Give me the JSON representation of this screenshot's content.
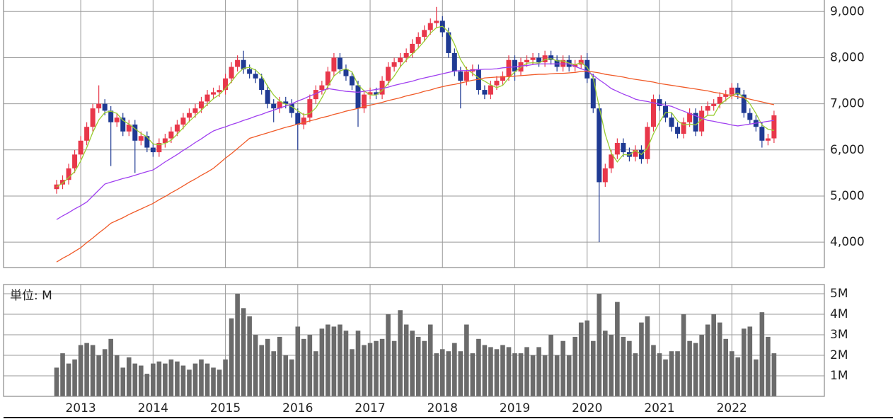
{
  "chart_data": {
    "type": "candlestick",
    "categories": [
      null,
      null,
      null,
      null,
      "2013",
      null,
      null,
      null,
      null,
      null,
      null,
      null,
      null,
      null,
      null,
      null,
      "2014",
      null,
      null,
      null,
      null,
      null,
      null,
      null,
      null,
      null,
      null,
      null,
      "2015",
      null,
      null,
      null,
      null,
      null,
      null,
      null,
      null,
      null,
      null,
      null,
      "2016",
      null,
      null,
      null,
      null,
      null,
      null,
      null,
      null,
      null,
      null,
      null,
      "2017",
      null,
      null,
      null,
      null,
      null,
      null,
      null,
      null,
      null,
      null,
      null,
      "2018",
      null,
      null,
      null,
      null,
      null,
      null,
      null,
      null,
      null,
      null,
      null,
      "2019",
      null,
      null,
      null,
      null,
      null,
      null,
      null,
      null,
      null,
      null,
      null,
      "2020",
      null,
      null,
      null,
      null,
      null,
      null,
      null,
      null,
      null,
      null,
      null,
      "2021",
      null,
      null,
      null,
      null,
      null,
      null,
      null,
      null,
      null,
      null,
      null,
      "2022",
      null,
      null,
      null,
      null,
      null,
      null,
      null
    ],
    "open": [
      5150,
      5250,
      5350,
      5600,
      5900,
      6200,
      6500,
      6900,
      7000,
      6850,
      6600,
      6700,
      6400,
      6550,
      6200,
      6300,
      6050,
      5950,
      6150,
      6250,
      6400,
      6550,
      6700,
      6800,
      6900,
      7050,
      7200,
      7250,
      7300,
      7550,
      7800,
      7950,
      7750,
      7650,
      7550,
      7300,
      7000,
      6900,
      7050,
      7000,
      6800,
      6550,
      6700,
      7100,
      7300,
      7400,
      7700,
      8000,
      7750,
      7600,
      7400,
      6900,
      7200,
      7250,
      7200,
      7500,
      7800,
      7900,
      8000,
      8100,
      8300,
      8450,
      8600,
      8750,
      8800,
      8550,
      8100,
      7700,
      7500,
      7700,
      7750,
      7300,
      7200,
      7400,
      7500,
      7600,
      7950,
      7700,
      7900,
      7950,
      8000,
      7900,
      8050,
      7950,
      7800,
      7950,
      7800,
      7850,
      7950,
      7550,
      6900,
      5300,
      5600,
      5900,
      6150,
      5950,
      5850,
      6000,
      5800,
      6500,
      7100,
      6950,
      6700,
      6500,
      6350,
      6600,
      6800,
      6400,
      6850,
      6950,
      7000,
      7150,
      7200,
      7350,
      7200,
      6800,
      6650,
      6500,
      6200,
      6250
    ],
    "high": [
      5350,
      5450,
      5700,
      6000,
      6300,
      6600,
      7000,
      7400,
      7100,
      6950,
      6800,
      6800,
      6650,
      6650,
      6400,
      6400,
      6150,
      6250,
      6350,
      6500,
      6650,
      6800,
      6900,
      7000,
      7150,
      7300,
      7350,
      7400,
      7650,
      7900,
      8050,
      8150,
      7850,
      7750,
      7650,
      7400,
      7100,
      7150,
      7150,
      7100,
      6900,
      6800,
      7200,
      7400,
      7500,
      7800,
      8100,
      8100,
      7850,
      7700,
      7500,
      7300,
      7350,
      7350,
      7600,
      7900,
      8000,
      8100,
      8200,
      8400,
      8550,
      8700,
      8850,
      9100,
      8900,
      8650,
      8200,
      7800,
      7800,
      7850,
      7850,
      7400,
      7500,
      7600,
      7700,
      8050,
      8050,
      8000,
      8050,
      8100,
      8100,
      8150,
      8150,
      8050,
      8050,
      8050,
      7950,
      8050,
      8100,
      7650,
      7000,
      5700,
      6000,
      6250,
      6250,
      6050,
      6100,
      6100,
      6600,
      7200,
      7200,
      7050,
      6800,
      6600,
      6700,
      6900,
      6900,
      6950,
      7050,
      7100,
      7250,
      7300,
      7450,
      7450,
      7300,
      6900,
      6750,
      6600,
      6350,
      6850
    ],
    "low": [
      5050,
      5150,
      5250,
      5500,
      5800,
      6100,
      6400,
      6800,
      6750,
      5650,
      6500,
      6300,
      6300,
      5500,
      6100,
      5950,
      5850,
      5850,
      6050,
      6150,
      6300,
      6450,
      6600,
      6700,
      6800,
      6950,
      7100,
      7150,
      7200,
      7450,
      7700,
      7650,
      7550,
      7450,
      7200,
      6900,
      6600,
      6800,
      6900,
      6700,
      6000,
      6450,
      6600,
      7000,
      7200,
      7300,
      7600,
      7650,
      7500,
      7300,
      6500,
      6800,
      7100,
      7100,
      7100,
      7400,
      7700,
      7800,
      7900,
      8000,
      8200,
      8350,
      8500,
      8650,
      8450,
      8000,
      7600,
      6900,
      7400,
      7600,
      7200,
      7100,
      7100,
      7300,
      7400,
      7500,
      7500,
      7600,
      7800,
      7850,
      7800,
      7800,
      7850,
      7700,
      7700,
      7700,
      7700,
      7750,
      7450,
      6800,
      4000,
      5200,
      5500,
      5800,
      5850,
      5750,
      5750,
      5700,
      5700,
      6400,
      6850,
      6600,
      6400,
      6250,
      6250,
      6500,
      6300,
      6300,
      6750,
      6850,
      6900,
      7050,
      7100,
      7100,
      6700,
      6550,
      6400,
      6050,
      6100,
      6150
    ],
    "close": [
      5250,
      5350,
      5600,
      5900,
      6200,
      6500,
      6900,
      7000,
      6850,
      6600,
      6700,
      6400,
      6550,
      6200,
      6300,
      6050,
      5950,
      6150,
      6250,
      6400,
      6550,
      6700,
      6800,
      6900,
      7050,
      7200,
      7250,
      7300,
      7550,
      7800,
      7950,
      7750,
      7650,
      7550,
      7300,
      7000,
      6900,
      7050,
      7000,
      6800,
      6550,
      6700,
      7100,
      7300,
      7400,
      7700,
      8000,
      7750,
      7600,
      7400,
      6900,
      7200,
      7250,
      7200,
      7500,
      7800,
      7900,
      8000,
      8100,
      8300,
      8450,
      8600,
      8750,
      8800,
      8550,
      8100,
      7700,
      7500,
      7700,
      7750,
      7300,
      7200,
      7400,
      7500,
      7600,
      7950,
      7700,
      7900,
      7950,
      8000,
      7900,
      8050,
      7950,
      7800,
      7950,
      7800,
      7850,
      7950,
      7550,
      6900,
      5300,
      5600,
      5900,
      6150,
      5950,
      5850,
      6000,
      5800,
      6500,
      7100,
      6950,
      6700,
      6500,
      6350,
      6600,
      6800,
      6400,
      6850,
      6950,
      7000,
      7150,
      7200,
      7350,
      7200,
      6800,
      6650,
      6500,
      6200,
      6250,
      6750
    ],
    "up_color": "#e8374a",
    "down_color": "#1f3a93",
    "moving_averages": [
      {
        "color": "#9acd32",
        "values": [
          5200,
          5280,
          5400,
          5530,
          5760,
          6050,
          6380,
          6650,
          6810,
          6840,
          6790,
          6640,
          6560,
          6460,
          6360,
          6280,
          6130,
          6110,
          6140,
          6210,
          6340,
          6480,
          6620,
          6740,
          6860,
          6990,
          7110,
          7200,
          7330,
          7480,
          7650,
          7770,
          7790,
          7730,
          7610,
          7380,
          7190,
          7060,
          6990,
          6940,
          6850,
          6760,
          6790,
          6910,
          7130,
          7380,
          7600,
          7710,
          7760,
          7690,
          7410,
          7280,
          7190,
          7190,
          7290,
          7440,
          7600,
          7800,
          7950,
          8080,
          8210,
          8360,
          8530,
          8650,
          8680,
          8560,
          8290,
          7960,
          7750,
          7660,
          7560,
          7490,
          7410,
          7350,
          7400,
          7560,
          7690,
          7790,
          7880,
          7890,
          7880,
          7960,
          7980,
          7930,
          7930,
          7880,
          7850,
          7890,
          7790,
          7560,
          6930,
          6340,
          5930,
          5740,
          5900,
          5890,
          5990,
          5900,
          6040,
          6350,
          6600,
          6810,
          6810,
          6630,
          6540,
          6560,
          6540,
          6660,
          6750,
          6750,
          6980,
          7080,
          7180,
          7230,
          7140,
          7000,
          6790,
          6540,
          6450,
          6420
        ]
      },
      {
        "color": "#a040f0",
        "values": [
          4490,
          4570,
          4640,
          4720,
          4790,
          4870,
          5000,
          5130,
          5260,
          5300,
          5340,
          5380,
          5410,
          5450,
          5490,
          5530,
          5565,
          5650,
          5740,
          5820,
          5900,
          5990,
          6070,
          6160,
          6240,
          6330,
          6410,
          6460,
          6500,
          6550,
          6590,
          6640,
          6680,
          6730,
          6770,
          6820,
          6860,
          6910,
          6950,
          7000,
          7060,
          7110,
          7170,
          7220,
          7280,
          7330,
          7310,
          7290,
          7270,
          7260,
          7250,
          7270,
          7290,
          7310,
          7330,
          7360,
          7400,
          7430,
          7460,
          7490,
          7530,
          7560,
          7590,
          7620,
          7650,
          7680,
          7710,
          7720,
          7720,
          7730,
          7740,
          7750,
          7750,
          7760,
          7780,
          7790,
          7800,
          7820,
          7830,
          7850,
          7865,
          7865,
          7865,
          7865,
          7865,
          7865,
          7810,
          7760,
          7710,
          7620,
          7520,
          7430,
          7330,
          7270,
          7210,
          7160,
          7100,
          7070,
          7050,
          7020,
          6990,
          6970,
          6945,
          6890,
          6840,
          6790,
          6740,
          6690,
          6640,
          6620,
          6590,
          6570,
          6540,
          6520,
          6540,
          6560,
          6580,
          6600,
          6620,
          6640
        ]
      },
      {
        "color": "#f05a28",
        "values": [
          3570,
          3650,
          3720,
          3800,
          3880,
          3990,
          4090,
          4200,
          4300,
          4410,
          4470,
          4530,
          4600,
          4660,
          4720,
          4780,
          4840,
          4920,
          4990,
          5070,
          5140,
          5220,
          5300,
          5370,
          5450,
          5520,
          5600,
          5710,
          5820,
          5920,
          6030,
          6140,
          6250,
          6290,
          6330,
          6370,
          6410,
          6450,
          6490,
          6520,
          6560,
          6590,
          6630,
          6660,
          6700,
          6730,
          6770,
          6800,
          6840,
          6870,
          6900,
          6940,
          6970,
          7000,
          7030,
          7070,
          7100,
          7130,
          7170,
          7200,
          7230,
          7270,
          7300,
          7340,
          7370,
          7400,
          7420,
          7450,
          7480,
          7510,
          7530,
          7560,
          7570,
          7580,
          7580,
          7590,
          7600,
          7610,
          7620,
          7630,
          7640,
          7640,
          7650,
          7660,
          7660,
          7670,
          7680,
          7700,
          7710,
          7690,
          7670,
          7640,
          7620,
          7600,
          7580,
          7550,
          7530,
          7510,
          7490,
          7470,
          7440,
          7420,
          7400,
          7380,
          7360,
          7340,
          7320,
          7300,
          7280,
          7250,
          7230,
          7200,
          7180,
          7150,
          7130,
          7100,
          7070,
          7040,
          7010,
          6980
        ]
      }
    ],
    "ylim": [
      3450,
      9250
    ],
    "yticks": [
      {
        "value": 4000,
        "label": "4,000"
      },
      {
        "value": 5000,
        "label": "5,000"
      },
      {
        "value": 6000,
        "label": "6,000"
      },
      {
        "value": 7000,
        "label": "7,000"
      },
      {
        "value": 8000,
        "label": "8,000"
      },
      {
        "value": 9000,
        "label": "9,000"
      }
    ],
    "grid": true,
    "volume": {
      "unit_label": "単位: M",
      "color": "#6b6b6b",
      "values": [
        1.4,
        2.1,
        1.6,
        1.8,
        2.5,
        2.6,
        2.5,
        2.0,
        2.3,
        2.8,
        2.0,
        1.4,
        1.9,
        1.6,
        1.5,
        1.1,
        1.6,
        1.7,
        1.6,
        1.8,
        1.7,
        1.5,
        1.3,
        1.6,
        1.8,
        1.6,
        1.4,
        1.3,
        1.8,
        3.8,
        5.0,
        4.3,
        3.9,
        3.0,
        2.5,
        2.8,
        2.2,
        2.9,
        2.0,
        1.8,
        3.4,
        2.8,
        3.0,
        2.2,
        3.3,
        3.5,
        3.4,
        3.5,
        3.2,
        2.3,
        3.2,
        2.5,
        2.6,
        2.7,
        2.8,
        4.0,
        2.7,
        4.2,
        3.5,
        3.2,
        2.9,
        2.7,
        3.5,
        2.1,
        2.3,
        2.2,
        2.6,
        2.2,
        3.5,
        2.1,
        2.8,
        2.5,
        2.4,
        2.3,
        2.5,
        2.4,
        2.1,
        2.1,
        2.4,
        2.0,
        2.4,
        2.0,
        3.0,
        2.0,
        2.7,
        2.0,
        2.9,
        3.6,
        3.7,
        2.7,
        5.0,
        3.2,
        3.0,
        4.6,
        2.9,
        2.7,
        2.1,
        3.6,
        3.9,
        2.5,
        2.1,
        1.8,
        2.2,
        2.2,
        4.0,
        2.7,
        2.6,
        3.0,
        3.5,
        4.0,
        3.6,
        2.8,
        2.2,
        1.9,
        3.3,
        3.4,
        1.8,
        4.1,
        2.9,
        2.1
      ],
      "ylim": [
        0,
        5.45
      ],
      "yticks": [
        {
          "value": 1,
          "label": "1M"
        },
        {
          "value": 2,
          "label": "2M"
        },
        {
          "value": 3,
          "label": "3M"
        },
        {
          "value": 4,
          "label": "4M"
        },
        {
          "value": 5,
          "label": "5M"
        }
      ]
    }
  }
}
